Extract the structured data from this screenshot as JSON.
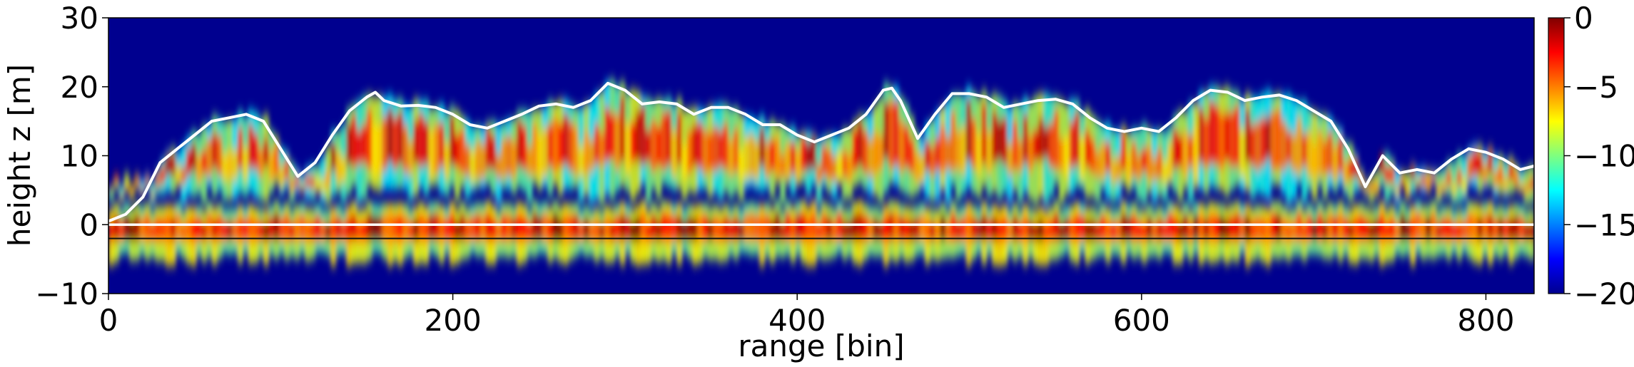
{
  "chart_data": {
    "type": "heatmap",
    "title": "",
    "xlabel": "range [bin]",
    "ylabel": "height z [m]",
    "xlim": [
      0,
      828
    ],
    "ylim": [
      -10,
      30
    ],
    "xticks": [
      0,
      200,
      400,
      600,
      800
    ],
    "xtick_labels": [
      "0",
      "200",
      "400",
      "600",
      "800"
    ],
    "yticks": [
      -10,
      0,
      10,
      20,
      30
    ],
    "ytick_labels": [
      "−10",
      "0",
      "10",
      "20",
      "30"
    ],
    "colorbar": {
      "colormap": "jet",
      "range": [
        -20,
        0
      ],
      "ticks": [
        0,
        -5,
        -10,
        -15,
        -20
      ],
      "tick_labels": [
        "0",
        "−5",
        "−10",
        "−15",
        "−20"
      ]
    },
    "grid": false,
    "background_color": "#00008f",
    "series": [
      {
        "type": "line",
        "color": "#ffffff",
        "x": [
          0,
          10,
          20,
          30,
          40,
          50,
          60,
          70,
          80,
          90,
          100,
          110,
          120,
          130,
          140,
          150,
          155,
          160,
          170,
          180,
          190,
          200,
          210,
          220,
          230,
          240,
          250,
          260,
          270,
          280,
          290,
          300,
          310,
          320,
          330,
          340,
          350,
          360,
          370,
          380,
          390,
          400,
          410,
          420,
          430,
          440,
          450,
          455,
          460,
          470,
          480,
          490,
          500,
          510,
          520,
          530,
          540,
          550,
          560,
          570,
          580,
          590,
          600,
          610,
          620,
          630,
          640,
          650,
          660,
          670,
          680,
          690,
          700,
          710,
          720,
          730,
          740,
          750,
          760,
          770,
          780,
          790,
          800,
          810,
          820,
          828
        ],
        "y": [
          0.5,
          1.5,
          4,
          9,
          11,
          13,
          15,
          15.5,
          16,
          15,
          11,
          7,
          9,
          13,
          16.5,
          18.5,
          19.2,
          18,
          17.2,
          17.3,
          17,
          16,
          14.5,
          14,
          15,
          16,
          17.2,
          17.5,
          17,
          18,
          20.5,
          19.5,
          17.5,
          17.8,
          17.5,
          16,
          17,
          17,
          16,
          14.5,
          14.5,
          13,
          12,
          13,
          14,
          16,
          19.5,
          19.8,
          18,
          12.5,
          16,
          19,
          19,
          18.5,
          17,
          17.5,
          18,
          18.2,
          17.5,
          15.5,
          14,
          13.5,
          14,
          13.5,
          15.5,
          18,
          19.5,
          19.2,
          18,
          18.5,
          18.8,
          18,
          16.5,
          15,
          11,
          5.5,
          10,
          7.5,
          8,
          7.5,
          9.5,
          11,
          10.5,
          9.5,
          8,
          8.5
        ]
      },
      {
        "type": "hline",
        "color": "#ffffff",
        "y": 0
      },
      {
        "type": "hline",
        "color": "#111111",
        "y": -2
      }
    ]
  }
}
